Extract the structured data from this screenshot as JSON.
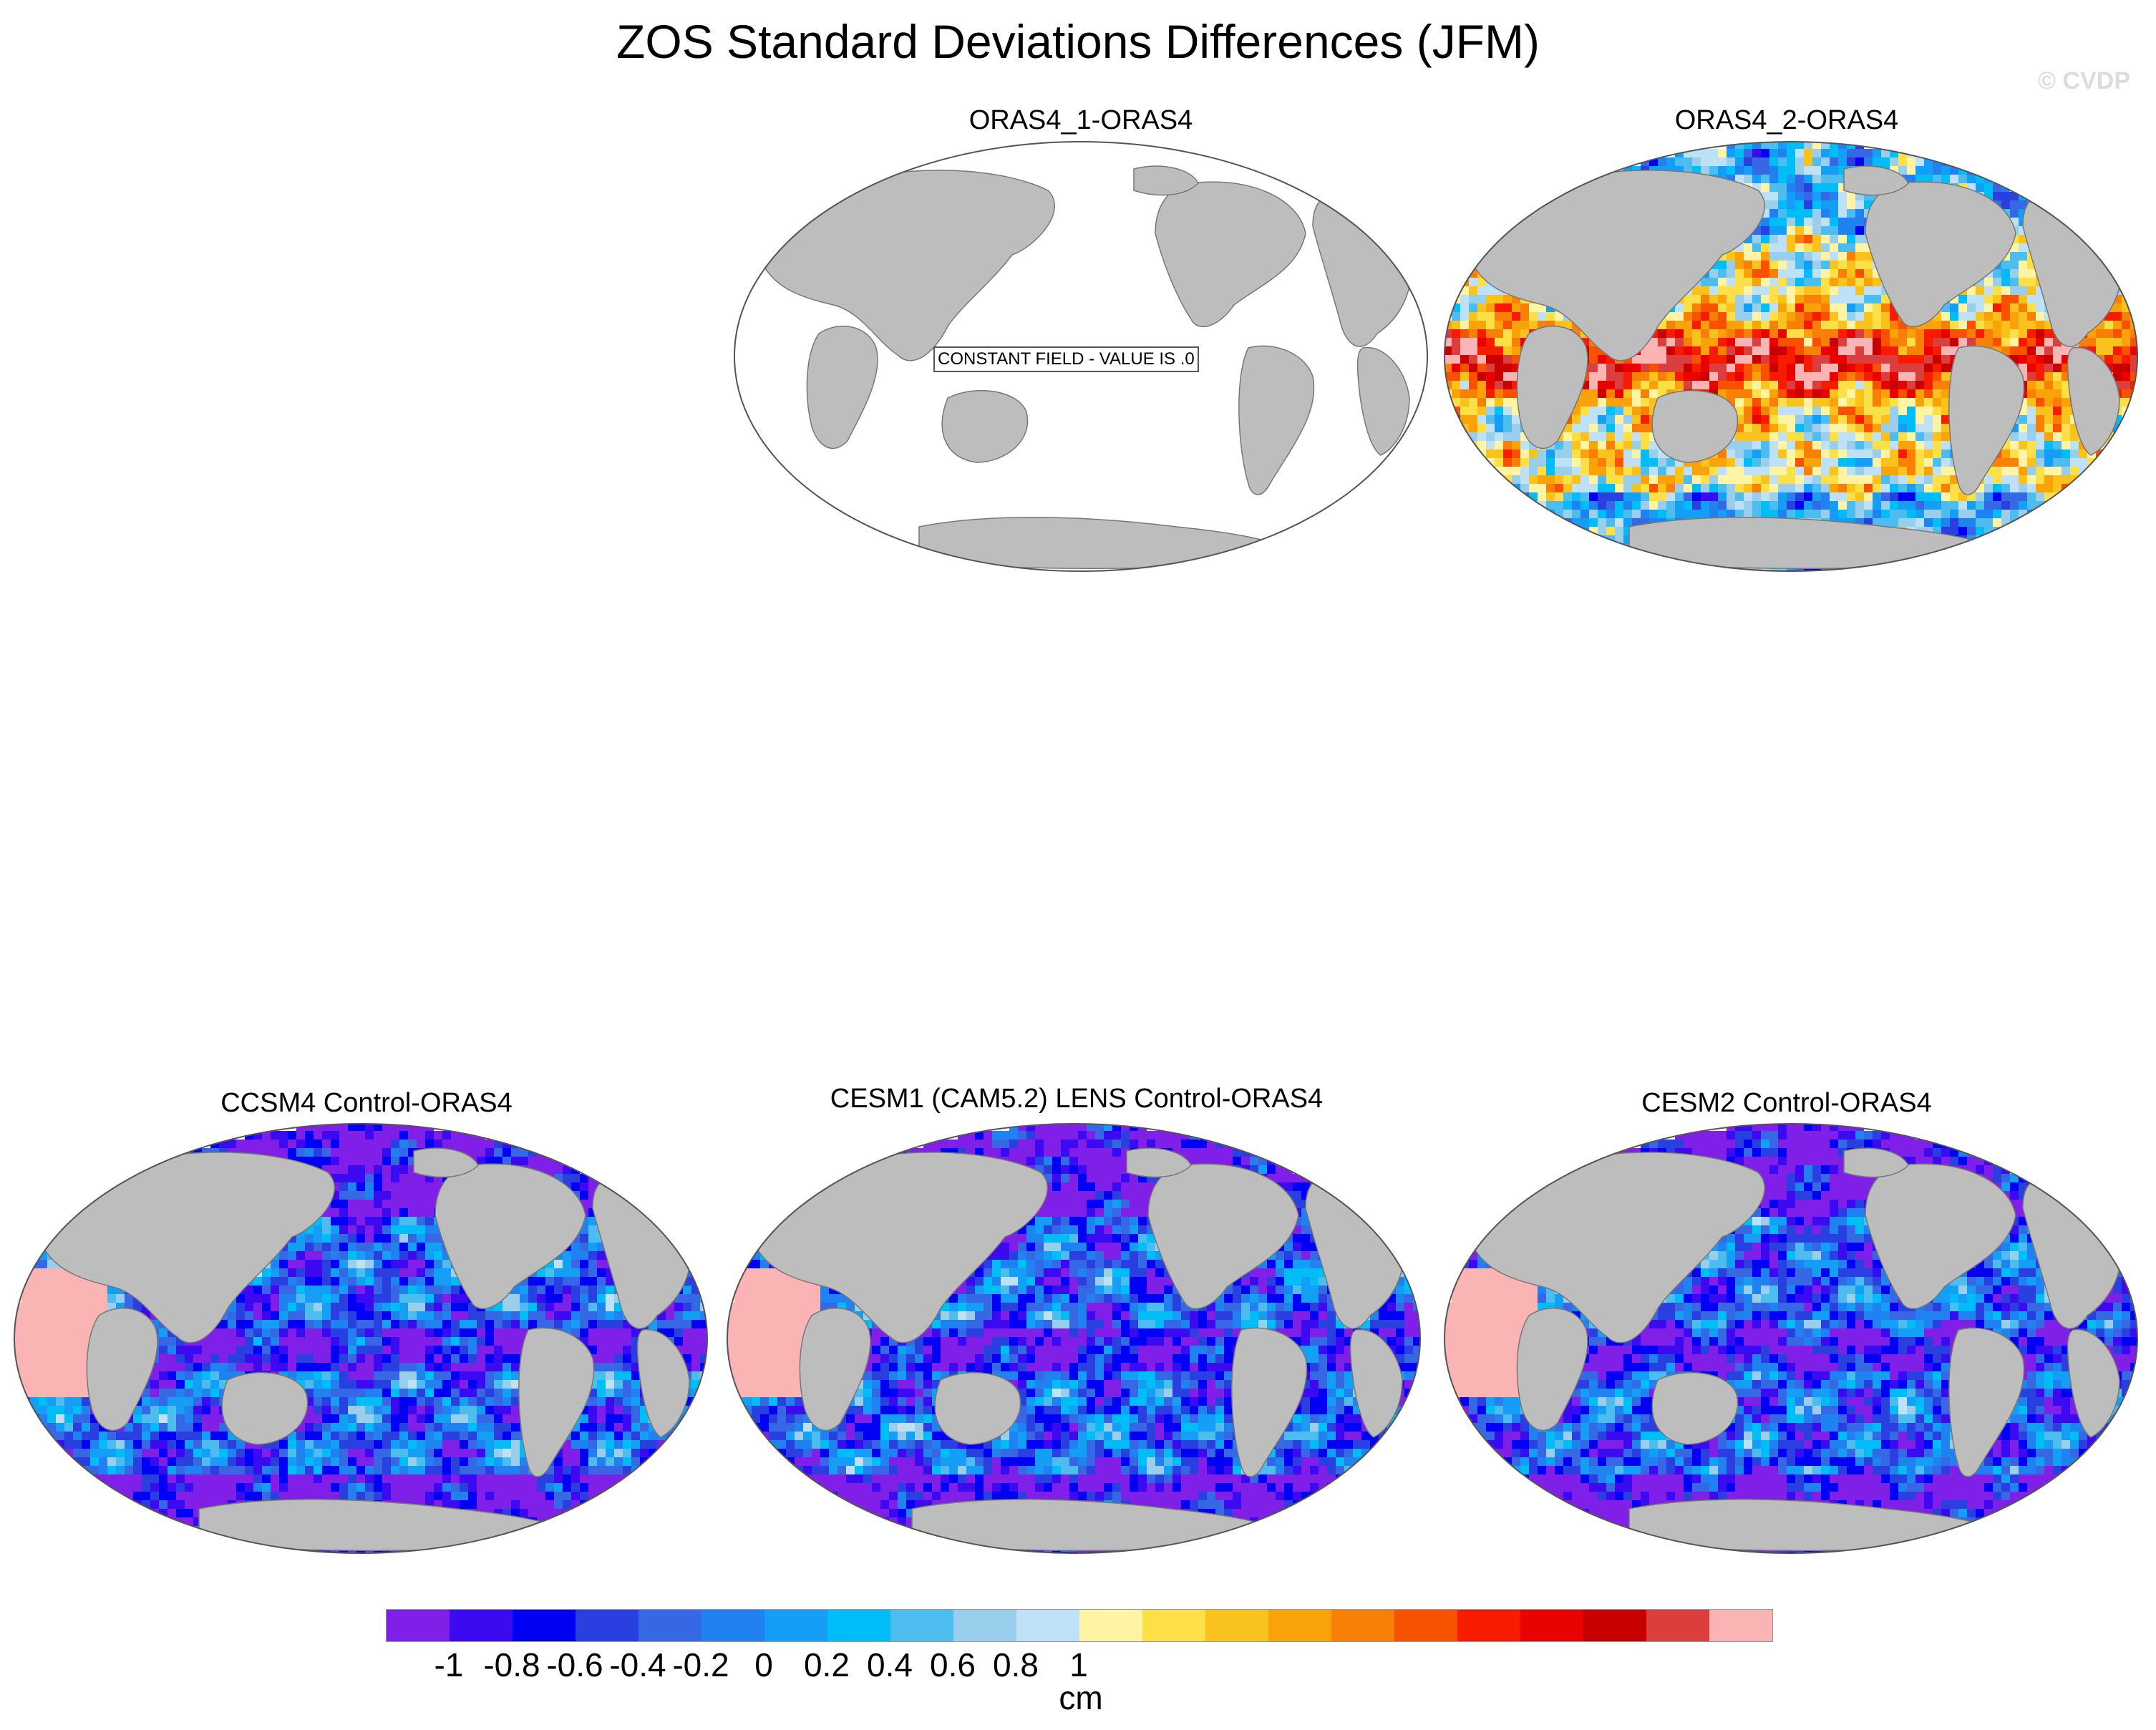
{
  "title": "ZOS Standard Deviations Differences (JFM)",
  "watermark": "© CVDP",
  "colors": {
    "land": "#bdbdbd",
    "ocean_white": "#ffffff",
    "outline": "#555555"
  },
  "panels": [
    {
      "id": "p1",
      "title": "ORAS4_1-ORAS4",
      "field": "constant",
      "notice": "CONSTANT FIELD - VALUE IS .0"
    },
    {
      "id": "p2",
      "title": "ORAS4_2-ORAS4",
      "field": "mixed",
      "notice": ""
    },
    {
      "id": "p3",
      "title": "CCSM4 Control-ORAS4",
      "field": "negative",
      "notice": ""
    },
    {
      "id": "p4",
      "title": "CESM1 (CAM5.2) LENS Control-ORAS4",
      "field": "negative",
      "notice": ""
    },
    {
      "id": "p5",
      "title": "CESM2 Control-ORAS4",
      "field": "negative",
      "notice": ""
    }
  ],
  "colorbar": {
    "unit": "cm",
    "colors": [
      "#7f1fe8",
      "#3b0af0",
      "#0000f5",
      "#2a3fe0",
      "#3668e6",
      "#1f82f0",
      "#149ef5",
      "#00bdf7",
      "#4cbdee",
      "#99cfec",
      "#bfe1f5",
      "#fff4a3",
      "#fde047",
      "#f9c21c",
      "#f9a20a",
      "#f98006",
      "#f85200",
      "#f71c00",
      "#e80200",
      "#c80000",
      "#dc3d3d",
      "#fbb4b4"
    ],
    "ticks": [
      "-1",
      "-0.8",
      "-0.6",
      "-0.4",
      "-0.2",
      "0",
      "0.2",
      "0.4",
      "0.6",
      "0.8",
      "1"
    ]
  }
}
